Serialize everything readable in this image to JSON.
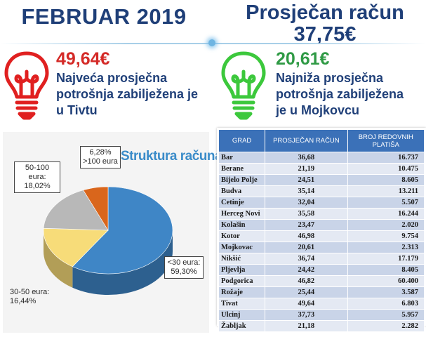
{
  "header": {
    "month": "FEBRUAR 2019",
    "avg_label": "Prosječan račun",
    "avg_value": "37,75€"
  },
  "highest": {
    "value": "49,64€",
    "line1": "Najveća prosječna",
    "line2": "potrošnja zabilježena je",
    "line3": "u Tivtu",
    "icon": "lightbulb-icon",
    "color": "#d42a27"
  },
  "lowest": {
    "value": "20,61€",
    "line1": "Najniža prosječna",
    "line2": "potrošnja zabilježena",
    "line3": "je u Mojkovcu",
    "icon": "lightbulb-icon",
    "color": "#2f9a45"
  },
  "chart_data": {
    "type": "pie",
    "title": "Struktura računa",
    "slices": [
      {
        "label": "<30 eura:",
        "value_label": "59,30%",
        "value": 59.3,
        "color": "#3f86c6"
      },
      {
        "label": "30-50 eura:",
        "value_label": "16,44%",
        "value": 16.44,
        "color": "#f7dc79"
      },
      {
        "label": "50-100 eura:",
        "value_label": "18,02%",
        "value": 18.02,
        "color": "#b8b8b8"
      },
      {
        "label": "6,28%",
        "value_label": ">100 eura",
        "value": 6.28,
        "color": "#d9661c"
      }
    ]
  },
  "table": {
    "headers": [
      "GRAD",
      "PROSJEČAN RAČUN",
      "BROJ REDOVNIH PLATIŠA"
    ],
    "rows": [
      [
        "Bar",
        "36,68",
        "16.737"
      ],
      [
        "Berane",
        "21,19",
        "10.475"
      ],
      [
        "Bijelo Polje",
        "24,51",
        "8.605"
      ],
      [
        "Budva",
        "35,14",
        "13.211"
      ],
      [
        "Cetinje",
        "32,04",
        "5.507"
      ],
      [
        "Herceg Novi",
        "35,58",
        "16.244"
      ],
      [
        "Kolašin",
        "23,47",
        "2.020"
      ],
      [
        "Kotor",
        "46,98",
        "9.754"
      ],
      [
        "Mojkovac",
        "20,61",
        "2.313"
      ],
      [
        "Nikšić",
        "36,74",
        "17.179"
      ],
      [
        "Pljevlja",
        "24,42",
        "8.405"
      ],
      [
        "Podgorica",
        "46,82",
        "60.400"
      ],
      [
        "Rožaje",
        "25,44",
        "3.587"
      ],
      [
        "Tivat",
        "49,64",
        "6.803"
      ],
      [
        "Ulcinj",
        "37,73",
        "5.957"
      ],
      [
        "Žabljak",
        "21,18",
        "2.282"
      ]
    ]
  }
}
